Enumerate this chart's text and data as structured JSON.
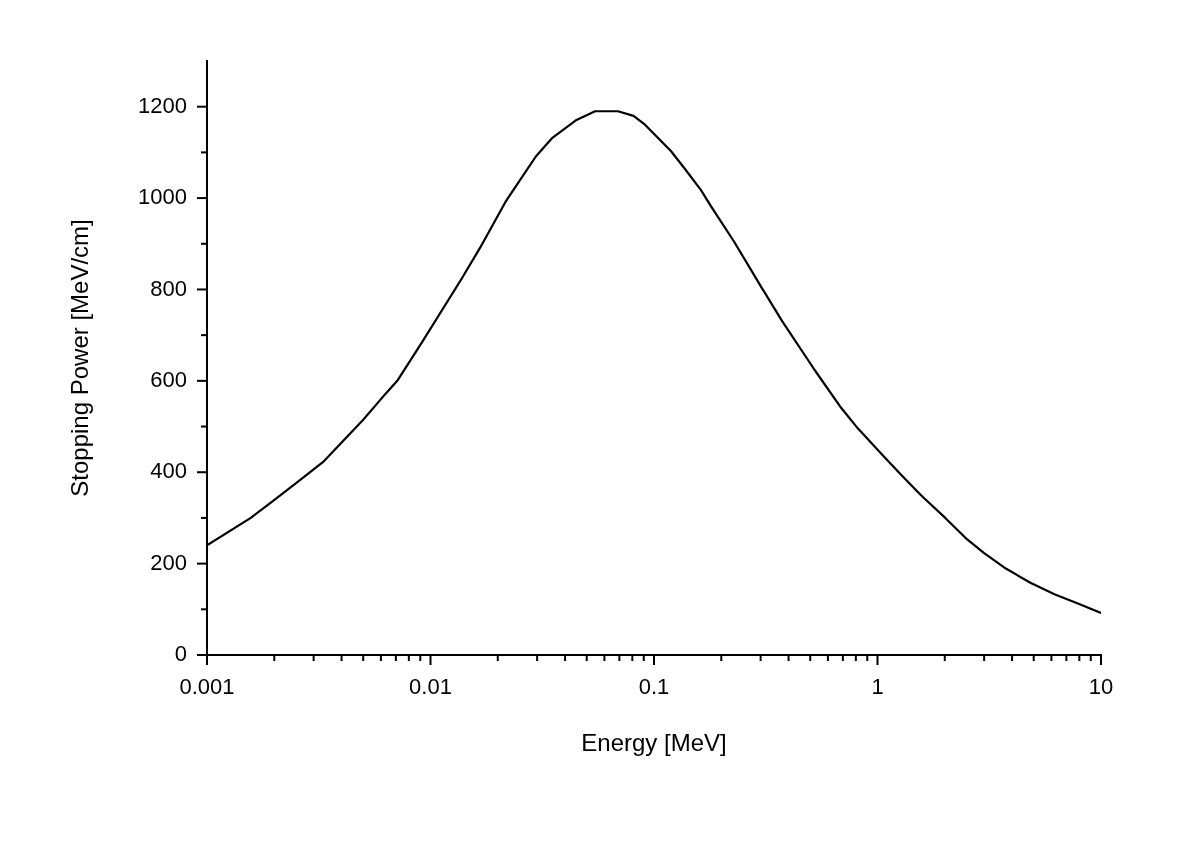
{
  "chart_data": {
    "type": "line",
    "xlabel": "Energy [MeV]",
    "ylabel": "Stopping Power [MeV/cm]",
    "log": "x",
    "marker": "none",
    "line_style": "solid",
    "legend": false,
    "xlim": [
      0.001,
      10
    ],
    "ylim": [
      0,
      1300
    ],
    "xticks": [
      0.001,
      {
        "value": 0.002,
        "label": null
      },
      {
        "value": 0.003,
        "label": null
      },
      {
        "value": 0.004,
        "label": null
      },
      {
        "value": 0.005,
        "label": null
      },
      {
        "value": 0.006,
        "label": null
      },
      {
        "value": 0.007,
        "label": null
      },
      {
        "value": 0.008,
        "label": null
      },
      {
        "value": 0.009,
        "label": null
      },
      0.01,
      {
        "value": 0.02,
        "label": null
      },
      {
        "value": 0.03,
        "label": null
      },
      {
        "value": 0.04,
        "label": null
      },
      {
        "value": 0.05,
        "label": null
      },
      {
        "value": 0.06,
        "label": null
      },
      {
        "value": 0.07,
        "label": null
      },
      {
        "value": 0.08,
        "label": null
      },
      {
        "value": 0.09,
        "label": null
      },
      0.1,
      {
        "value": 0.2,
        "label": null
      },
      {
        "value": 0.3,
        "label": null
      },
      {
        "value": 0.4,
        "label": null
      },
      {
        "value": 0.5,
        "label": null
      },
      {
        "value": 0.6,
        "label": null
      },
      {
        "value": 0.7,
        "label": null
      },
      {
        "value": 0.8,
        "label": null
      },
      {
        "value": 0.9,
        "label": null
      },
      1,
      {
        "value": 2,
        "label": null
      },
      {
        "value": 3,
        "label": null
      },
      {
        "value": 4,
        "label": null
      },
      {
        "value": 5,
        "label": null
      },
      {
        "value": 6,
        "label": null
      },
      {
        "value": 7,
        "label": null
      },
      {
        "value": 8,
        "label": null
      },
      {
        "value": 9,
        "label": null
      },
      10
    ],
    "yticks": [
      0,
      {
        "value": 100,
        "label": null
      },
      200,
      {
        "value": 300,
        "label": null
      },
      400,
      {
        "value": 500,
        "label": null
      },
      600,
      {
        "value": 700,
        "label": null
      },
      800,
      {
        "value": 900,
        "label": null
      },
      1000,
      {
        "value": 1100,
        "label": null
      },
      1200
    ],
    "x": [
      0.001,
      0.00157,
      0.00197,
      0.00252,
      0.0033,
      0.005,
      0.0063,
      0.0071,
      0.0092,
      0.0138,
      0.0167,
      0.0218,
      0.0296,
      0.0351,
      0.045,
      0.0545,
      0.069,
      0.081,
      0.0914,
      0.119,
      0.136,
      0.162,
      0.18,
      0.228,
      0.304,
      0.375,
      0.528,
      0.69,
      0.82,
      1.07,
      1.3,
      1.57,
      2.01,
      2.48,
      3.0,
      3.7,
      4.83,
      6.19,
      7.93,
      10
    ],
    "series": [
      {
        "color": "#000000",
        "values": [
          240,
          300,
          337,
          377,
          422,
          515,
          572,
          600,
          686,
          824,
          892,
          994,
          1091,
          1132,
          1171,
          1190,
          1190,
          1180,
          1160,
          1103,
          1067,
          1018,
          982,
          905,
          803,
          730,
          621,
          540,
          495,
          434,
          390,
          349,
          300,
          256,
          223,
          191,
          158,
          133,
          112,
          92
        ]
      }
    ]
  }
}
